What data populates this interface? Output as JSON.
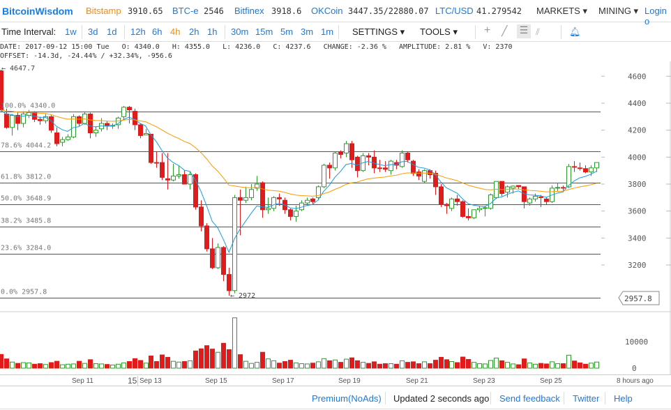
{
  "header": {
    "brand": "BitcoinWisdom",
    "tickers": [
      {
        "name": "Bitstamp",
        "value": "3910.65"
      },
      {
        "name": "BTC-e",
        "value": "2546"
      },
      {
        "name": "Bitfinex",
        "value": "3918.6"
      },
      {
        "name": "OKCoin",
        "value": "3447.35/22880.07"
      },
      {
        "name": "LTC/USD",
        "value": "41.279542"
      }
    ],
    "markets": "MARKETS ▾",
    "mining": "MINING ▾",
    "login": "Login o"
  },
  "toolbar": {
    "label": "Time Interval:",
    "intervals": [
      "1w",
      "3d",
      "1d",
      "12h",
      "6h",
      "4h",
      "2h",
      "1h",
      "30m",
      "15m",
      "5m",
      "3m",
      "1m"
    ],
    "active": "4h",
    "settings": "SETTINGS ▾",
    "tools": "TOOLS ▾"
  },
  "info": {
    "line1": "DATE: 2017-09-12 15:00 Tue   O: 4340.0   H: 4355.0   L: 4236.0   C: 4237.6   CHANGE: -2.36 %   AMPLITUDE: 2.81 %   V: 2370",
    "line2": "OFFSET: -14.3d, -24.44% / +32.34%, -956.6"
  },
  "colors": {
    "up": "#2e9a2e",
    "down": "#e01b1b",
    "ma_fast": "#1a9be0",
    "ma_slow": "#ff9900",
    "active": "#ff8a00",
    "link": "#1a7be0"
  },
  "chart_data": {
    "type": "candlestick",
    "price_axis": {
      "ticks": [
        "4600",
        "4400",
        "4200",
        "4000",
        "3800",
        "3600",
        "3400",
        "3200"
      ],
      "range": [
        2900,
        4700
      ]
    },
    "volume_axis": {
      "ticks": [
        "10000",
        "0"
      ],
      "range": [
        0,
        20000
      ]
    },
    "high_label": "← 4647.7",
    "low_label": "← 2972",
    "last_price": "2957.8",
    "fib_levels": [
      {
        "label": "100.0% 4340.0",
        "price": 4340.0
      },
      {
        "label": "78.6% 4044.2",
        "price": 4044.2
      },
      {
        "label": "61.8% 3812.0",
        "price": 3812.0
      },
      {
        "label": "50.0% 3648.9",
        "price": 3648.9
      },
      {
        "label": "38.2% 3485.8",
        "price": 3485.8
      },
      {
        "label": "23.6% 3284.0",
        "price": 3284.0
      },
      {
        "label": "0.0% 2957.8",
        "price": 2957.8
      }
    ],
    "date_labels": [
      "Sep 11",
      "15",
      "Sep 13",
      "Sep 15",
      "Sep 17",
      "Sep 19",
      "Sep 21",
      "Sep 23",
      "Sep 25",
      "8 hours ago"
    ],
    "candles_ohlc": [
      [
        4640,
        4648,
        4340,
        4350
      ],
      [
        4320,
        4360,
        4210,
        4220
      ],
      [
        4220,
        4320,
        4160,
        4310
      ],
      [
        4310,
        4330,
        4200,
        4250
      ],
      [
        4250,
        4340,
        4220,
        4320
      ],
      [
        4310,
        4350,
        4290,
        4330
      ],
      [
        4330,
        4340,
        4260,
        4280
      ],
      [
        4280,
        4300,
        4240,
        4270
      ],
      [
        4270,
        4320,
        4250,
        4300
      ],
      [
        4300,
        4310,
        4180,
        4200
      ],
      [
        4180,
        4220,
        4080,
        4100
      ],
      [
        4110,
        4150,
        4080,
        4130
      ],
      [
        4130,
        4170,
        4120,
        4150
      ],
      [
        4150,
        4320,
        4140,
        4300
      ],
      [
        4300,
        4310,
        4230,
        4250
      ],
      [
        4250,
        4340,
        4240,
        4320
      ],
      [
        4320,
        4330,
        4140,
        4180
      ],
      [
        4180,
        4230,
        4150,
        4200
      ],
      [
        4210,
        4290,
        4190,
        4250
      ],
      [
        4250,
        4270,
        4200,
        4230
      ],
      [
        4230,
        4250,
        4210,
        4235
      ],
      [
        4240,
        4300,
        4210,
        4290
      ],
      [
        4300,
        4380,
        4280,
        4370
      ],
      [
        4370,
        4380,
        4250,
        4350
      ],
      [
        4340,
        4360,
        4200,
        4240
      ],
      [
        4240,
        4250,
        4140,
        4160
      ],
      [
        4165,
        4210,
        4165,
        4175
      ],
      [
        4170,
        4170,
        3950,
        3960
      ],
      [
        3960,
        4040,
        3920,
        3955
      ],
      [
        3960,
        4030,
        3830,
        3850
      ],
      [
        3840,
        4030,
        3760,
        3830
      ],
      [
        3830,
        3950,
        3820,
        3860
      ],
      [
        3860,
        3940,
        3840,
        3870
      ],
      [
        3870,
        3900,
        3800,
        3800
      ],
      [
        3800,
        3890,
        3760,
        3870
      ],
      [
        3870,
        3880,
        3610,
        3630
      ],
      [
        3630,
        3680,
        3450,
        3490
      ],
      [
        3490,
        3510,
        3300,
        3320
      ],
      [
        3320,
        3400,
        3170,
        3180
      ],
      [
        3180,
        3360,
        3170,
        3330
      ],
      [
        3330,
        3340,
        3080,
        3130
      ],
      [
        3130,
        3180,
        2972,
        3010
      ],
      [
        3010,
        3720,
        2990,
        3700
      ],
      [
        3700,
        3760,
        3420,
        3680
      ],
      [
        3680,
        3780,
        3660,
        3700
      ],
      [
        3700,
        3800,
        3680,
        3760
      ],
      [
        3770,
        3860,
        3750,
        3800
      ],
      [
        3810,
        3820,
        3550,
        3610
      ],
      [
        3610,
        3700,
        3580,
        3620
      ],
      [
        3620,
        3710,
        3600,
        3700
      ],
      [
        3700,
        3730,
        3640,
        3690
      ],
      [
        3680,
        3700,
        3580,
        3610
      ],
      [
        3610,
        3620,
        3530,
        3560
      ],
      [
        3560,
        3640,
        3520,
        3600
      ],
      [
        3610,
        3680,
        3600,
        3660
      ],
      [
        3660,
        3700,
        3640,
        3680
      ],
      [
        3690,
        3700,
        3650,
        3670
      ],
      [
        3700,
        3790,
        3680,
        3780
      ],
      [
        3780,
        3950,
        3770,
        3940
      ],
      [
        3940,
        3960,
        3840,
        3920
      ],
      [
        3920,
        4040,
        3900,
        4030
      ],
      [
        4040,
        4050,
        3990,
        4020
      ],
      [
        4030,
        4120,
        4000,
        4100
      ],
      [
        4100,
        4120,
        3920,
        3980
      ],
      [
        4000,
        4010,
        3850,
        3900
      ],
      [
        3900,
        4030,
        3890,
        4010
      ],
      [
        4010,
        4030,
        3940,
        4000
      ],
      [
        4000,
        4050,
        3880,
        3920
      ],
      [
        3920,
        3980,
        3890,
        3915
      ],
      [
        3920,
        3970,
        3890,
        3910
      ],
      [
        3900,
        3980,
        3870,
        3970
      ],
      [
        3960,
        3980,
        3910,
        3940
      ],
      [
        3930,
        4050,
        3920,
        4030
      ],
      [
        4030,
        4040,
        3960,
        3980
      ],
      [
        3970,
        3980,
        3860,
        3880
      ],
      [
        3890,
        3910,
        3830,
        3860
      ],
      [
        3820,
        3910,
        3810,
        3900
      ],
      [
        3900,
        3910,
        3840,
        3870
      ],
      [
        3880,
        3900,
        3720,
        3780
      ],
      [
        3780,
        3800,
        3630,
        3650
      ],
      [
        3650,
        3660,
        3580,
        3640
      ],
      [
        3620,
        3700,
        3600,
        3690
      ],
      [
        3690,
        3720,
        3640,
        3670
      ],
      [
        3670,
        3680,
        3550,
        3560
      ],
      [
        3560,
        3620,
        3530,
        3550
      ],
      [
        3550,
        3610,
        3540,
        3610
      ],
      [
        3610,
        3640,
        3590,
        3620
      ],
      [
        3620,
        3640,
        3560,
        3625
      ],
      [
        3620,
        3730,
        3610,
        3720
      ],
      [
        3700,
        3820,
        3690,
        3820
      ],
      [
        3820,
        3820,
        3710,
        3730
      ],
      [
        3740,
        3790,
        3700,
        3780
      ],
      [
        3770,
        3790,
        3730,
        3785
      ],
      [
        3790,
        3790,
        3760,
        3780
      ],
      [
        3780,
        3780,
        3620,
        3670
      ],
      [
        3660,
        3700,
        3640,
        3690
      ],
      [
        3690,
        3730,
        3670,
        3710
      ],
      [
        3705,
        3720,
        3630,
        3700
      ],
      [
        3690,
        3700,
        3650,
        3670
      ],
      [
        3670,
        3790,
        3660,
        3770
      ],
      [
        3770,
        3810,
        3750,
        3775
      ],
      [
        3775,
        3790,
        3740,
        3770
      ],
      [
        3780,
        3950,
        3770,
        3930
      ],
      [
        3930,
        3970,
        3890,
        3925
      ],
      [
        3920,
        3960,
        3900,
        3915
      ],
      [
        3915,
        3940,
        3880,
        3890
      ],
      [
        3890,
        3940,
        3860,
        3920
      ],
      [
        3920,
        3960,
        3890,
        3960
      ]
    ],
    "volumes": [
      5200,
      3500,
      2300,
      1800,
      2100,
      2000,
      1500,
      1700,
      1400,
      2100,
      2600,
      1300,
      1500,
      1600,
      2600,
      1800,
      3200,
      1700,
      1600,
      1400,
      1200,
      1500,
      2000,
      2500,
      3600,
      2900,
      1900,
      4600,
      2500,
      5000,
      4100,
      2600,
      2300,
      2500,
      2800,
      6500,
      7300,
      8500,
      7200,
      6000,
      9400,
      7000,
      19000,
      5100,
      2600,
      1800,
      2200,
      6000,
      3500,
      2800,
      1900,
      2500,
      3000,
      2000,
      1700,
      1600,
      1900,
      2400,
      3600,
      2800,
      3100,
      2200,
      3400,
      3900,
      2800,
      2200,
      1800,
      2400,
      1500,
      1700,
      1700,
      1500,
      2800,
      2200,
      2400,
      1700,
      2400,
      1700,
      3000,
      4100,
      3200,
      2500,
      2100,
      4200,
      3300,
      2200,
      1700,
      1600,
      2900,
      3800,
      2800,
      2200,
      1600,
      1300,
      3500,
      2000,
      1500,
      1800,
      1600,
      2400,
      1700,
      1700,
      4900,
      2700,
      2000,
      1500,
      1900,
      2300
    ]
  },
  "footer": {
    "premium": "Premium(NoAds)",
    "updated": "Updated 2 seconds ago",
    "feedback": "Send feedback",
    "twitter": "Twitter",
    "help": "Help"
  }
}
